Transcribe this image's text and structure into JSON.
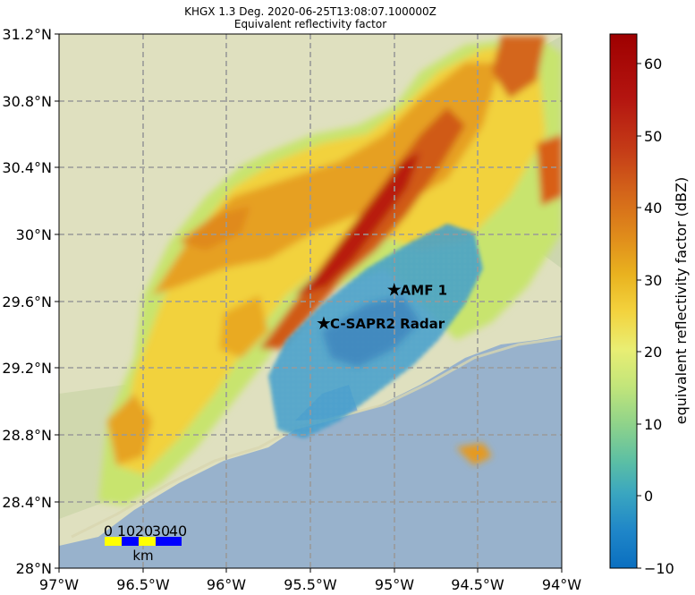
{
  "title": "KHGX 1.3 Deg. 2020-06-25T13:08:07.100000Z",
  "subtitle": "Equivalent reflectivity factor",
  "lat_ticks": [
    "31.2°N",
    "30.8°N",
    "30.4°N",
    "30°N",
    "29.6°N",
    "29.2°N",
    "28.8°N",
    "28.4°N",
    "28°N"
  ],
  "lon_ticks": [
    "97°W",
    "96.5°W",
    "96°W",
    "95.5°W",
    "95°W",
    "94.5°W",
    "94°W"
  ],
  "colorbar": {
    "label": "equivalent reflectivity factor (dBZ)",
    "ticks": [
      "60",
      "50",
      "40",
      "30",
      "20",
      "10",
      "0",
      "−10"
    ],
    "range": [
      -10,
      64
    ]
  },
  "markers": [
    {
      "name": "AMF 1",
      "lon": -95.0,
      "lat": 29.67
    },
    {
      "name": "C-SAPR2 Radar",
      "lon": -95.42,
      "lat": 29.47
    }
  ],
  "scale_bar": {
    "labels": [
      "0",
      "10",
      "20",
      "30",
      "40"
    ],
    "unit": "km",
    "colors": [
      "#ffff00",
      "#0000ff"
    ]
  },
  "colors": {
    "ocean": "#98b2cc",
    "land": "#dfe0bf",
    "grid": "#999999"
  }
}
